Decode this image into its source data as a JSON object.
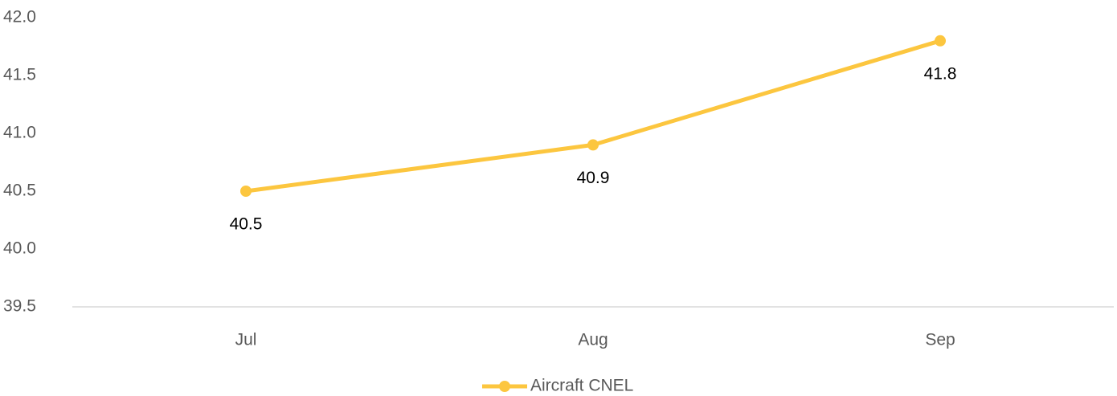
{
  "chart_data": {
    "type": "line",
    "categories": [
      "Jul",
      "Aug",
      "Sep"
    ],
    "series": [
      {
        "name": "Aircraft CNEL",
        "color": "#fcc63f",
        "values": [
          40.5,
          40.9,
          41.8
        ]
      }
    ],
    "ylim": [
      39.5,
      42.0
    ],
    "yticks": [
      39.5,
      {
        "value": 40.0,
        "label": "40.0"
      },
      40.5,
      {
        "value": 41.0,
        "label": "41.0"
      },
      41.5,
      {
        "value": 42.0,
        "label": "42.0"
      }
    ],
    "grid": false,
    "legend": "bottom"
  }
}
